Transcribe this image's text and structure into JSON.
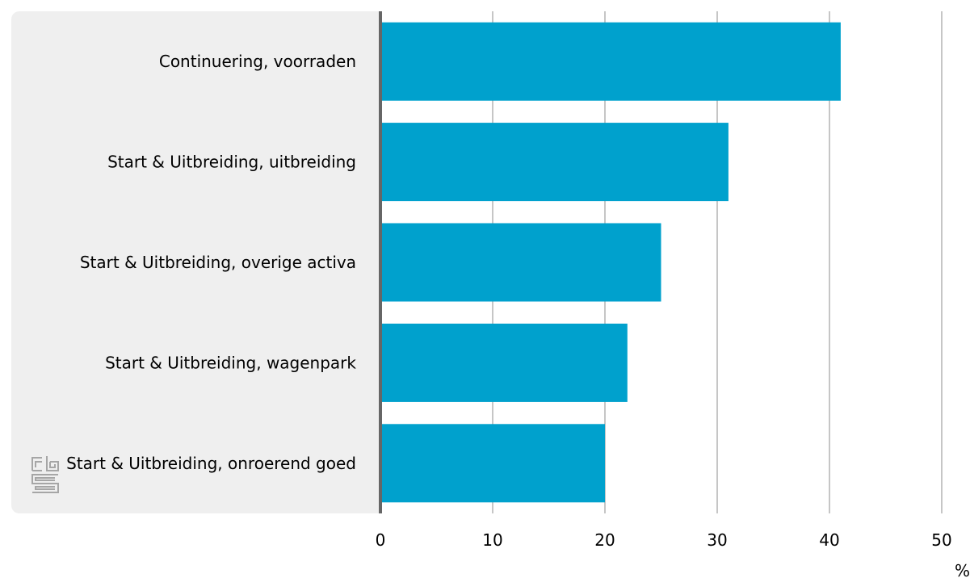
{
  "chart_data": {
    "type": "bar",
    "orientation": "horizontal",
    "categories": [
      "Continuering, voorraden",
      "Start & Uitbreiding, uitbreiding",
      "Start & Uitbreiding, overige activa",
      "Start & Uitbreiding, wagenpark",
      "Start & Uitbreiding, onroerend goed"
    ],
    "values": [
      41,
      31,
      25,
      22,
      20
    ],
    "xlim": [
      0,
      50
    ],
    "xticks": [
      "0",
      "10",
      "20",
      "30",
      "40",
      "50"
    ],
    "unit": "%",
    "grid": true,
    "bar_color": "#00a1cd"
  }
}
